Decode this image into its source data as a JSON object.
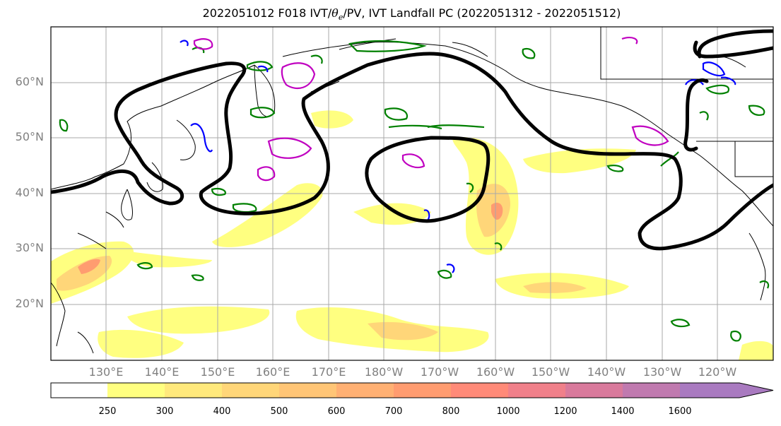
{
  "map": {
    "title_main": "2022051012 F018 IVT/",
    "title_theta": "θ",
    "title_sub": "e",
    "title_rest": "/PV, IVT Landfall PC (2022051312 - 2022051512)",
    "lat_labels": [
      "60°N",
      "50°N",
      "40°N",
      "30°N",
      "20°N"
    ],
    "lon_labels": [
      "130°E",
      "140°E",
      "150°E",
      "160°E",
      "170°E",
      "180°W",
      "170°W",
      "160°W",
      "150°W",
      "140°W",
      "130°W",
      "120°W"
    ],
    "colors": {
      "ivt_low": "#ffff80",
      "ivt_mid": "#ffcf73",
      "ivt_high": "#ff9a6e",
      "theta_e": "#008000",
      "pv_pos": "#c000c0",
      "pv_neg": "#0000ff",
      "landfall_pc": "#000000",
      "coast": "#000000"
    }
  },
  "colorbar": {
    "ticks": [
      "250",
      "300",
      "400",
      "500",
      "600",
      "700",
      "800",
      "1000",
      "1200",
      "1400",
      "1600"
    ],
    "colors": [
      "#ffff80",
      "#ffe97c",
      "#ffd679",
      "#ffc576",
      "#ffb073",
      "#ff9c70",
      "#ff8a78",
      "#f0808a",
      "#d97a9c",
      "#c07aaf",
      "#a97ac0"
    ]
  }
}
